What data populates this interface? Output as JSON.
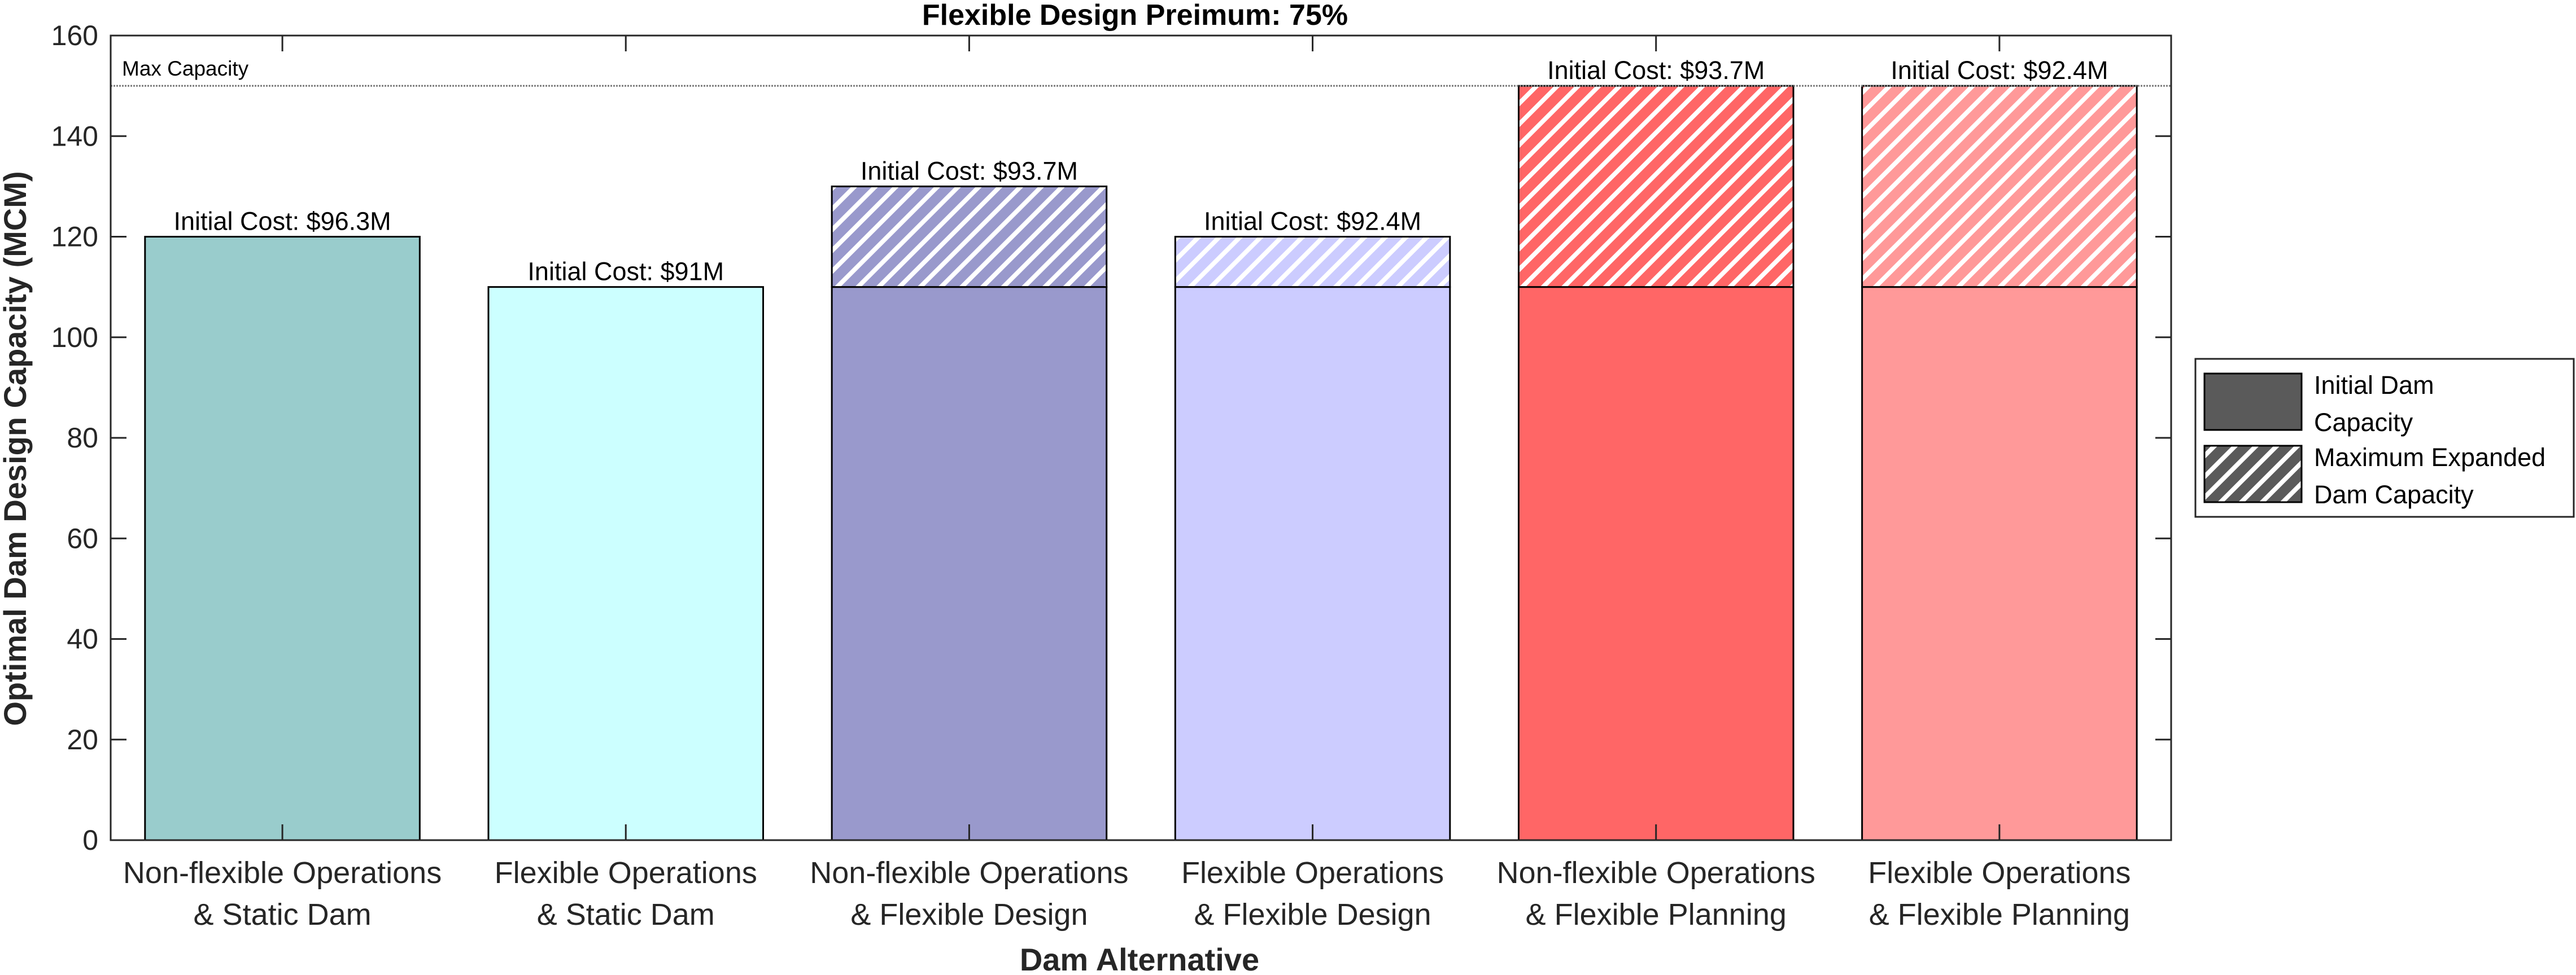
{
  "chart_data": {
    "type": "bar",
    "title": "Flexible Design Preimum: 75%",
    "xlabel": "Dam Alternative",
    "ylabel": "Optimal Dam Design Capacity (MCM)",
    "ylim": [
      0,
      160
    ],
    "yticks": [
      0,
      20,
      40,
      60,
      80,
      100,
      120,
      140,
      160
    ],
    "grid": false,
    "categories": [
      [
        "Non-flexible Operations",
        "& Static Dam"
      ],
      [
        "Flexible Operations",
        "& Static Dam"
      ],
      [
        "Non-flexible Operations",
        "& Flexible Design"
      ],
      [
        "Flexible Operations",
        "& Flexible Design"
      ],
      [
        "Non-flexible Operations",
        "& Flexible Planning"
      ],
      [
        "Flexible Operations",
        "& Flexible Planning"
      ]
    ],
    "series": [
      {
        "name": "Initial Dam Capacity",
        "values": [
          120,
          110,
          110,
          110,
          110,
          110
        ]
      },
      {
        "name": "Maximum Expanded Dam Capacity",
        "values": [
          120,
          110,
          130,
          120,
          150,
          150
        ]
      }
    ],
    "bar_colors": [
      "#99cccc",
      "#ccffff",
      "#9999cc",
      "#ccccff",
      "#ff6666",
      "#ff9999"
    ],
    "annotations": [
      "Initial Cost: $96.3M",
      "Initial Cost: $91M",
      "Initial Cost: $93.7M",
      "Initial Cost: $92.4M",
      "Initial Cost: $93.7M",
      "Initial Cost: $92.4M"
    ],
    "reference_line": {
      "label": "Max Capacity",
      "value": 150
    },
    "legend": {
      "position": "right",
      "entries": [
        {
          "label": [
            "Initial Dam",
            "Capacity"
          ],
          "style": "solid",
          "color": "#5a5a5a"
        },
        {
          "label": [
            "Maximum Expanded",
            "Dam Capacity"
          ],
          "style": "hatched",
          "color": "#5a5a5a"
        }
      ]
    }
  }
}
